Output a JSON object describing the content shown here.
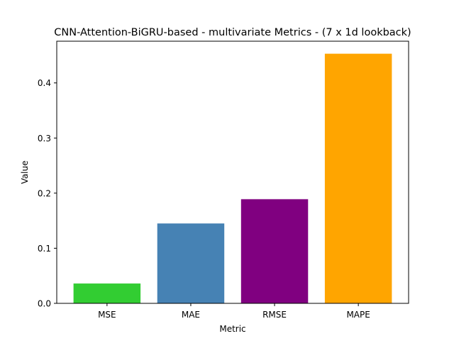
{
  "chart_data": {
    "type": "bar",
    "title": "CNN-Attention-BiGRU-based - multivariate Metrics - (7 x 1d lookback)",
    "xlabel": "Metric",
    "ylabel": "Value",
    "categories": [
      "MSE",
      "MAE",
      "RMSE",
      "MAPE"
    ],
    "values": [
      0.036,
      0.145,
      0.189,
      0.453
    ],
    "colors": [
      "#32cd32",
      "#4682b4",
      "#800080",
      "#ffa500"
    ],
    "ylim": [
      0,
      0.4757
    ],
    "yticks": [
      0.0,
      0.1,
      0.2,
      0.3,
      0.4
    ],
    "ytick_labels": [
      "0.0",
      "0.1",
      "0.2",
      "0.3",
      "0.4"
    ],
    "grid": false,
    "legend": "none"
  }
}
